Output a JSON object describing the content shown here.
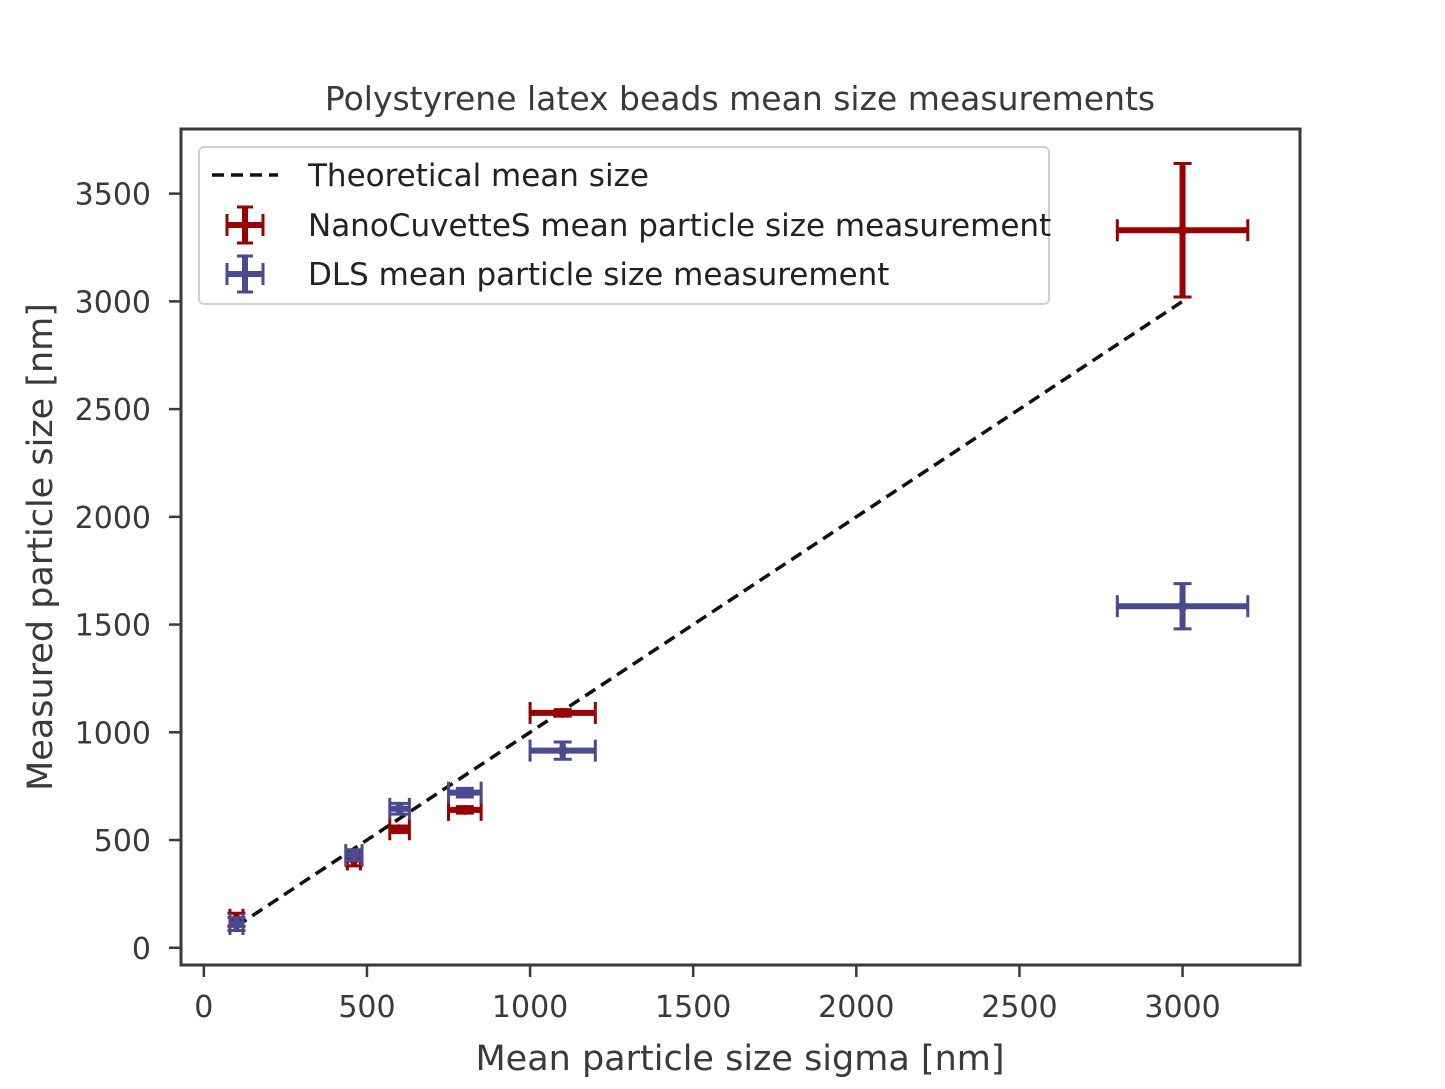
{
  "chart_data": {
    "type": "scatter",
    "title": "Polystyrene latex beads mean size measurements",
    "xlabel": "Mean particle size sigma [nm]",
    "ylabel": "Measured particle size [nm]",
    "xlim": [
      -70,
      3360
    ],
    "ylim": [
      -80,
      3800
    ],
    "xticks": [
      0,
      500,
      1000,
      1500,
      2000,
      2500,
      3000
    ],
    "yticks": [
      0,
      500,
      1000,
      1500,
      2000,
      2500,
      3000,
      3500
    ],
    "grid": false,
    "legend_position": "top-left",
    "series": [
      {
        "name": "Theoretical mean size",
        "kind": "line",
        "style": "dashed",
        "color": "#111111",
        "points": [
          {
            "x": 100,
            "y": 100
          },
          {
            "x": 3000,
            "y": 3000
          }
        ]
      },
      {
        "name": "NanoCuvetteS mean particle size measurement",
        "kind": "errorbar",
        "color": "#990000",
        "points": [
          {
            "x": 100,
            "y": 130,
            "xerr": 20,
            "yerr": 30
          },
          {
            "x": 460,
            "y": 410,
            "xerr": 20,
            "yerr": 30
          },
          {
            "x": 600,
            "y": 550,
            "xerr": 30,
            "yerr": 15
          },
          {
            "x": 800,
            "y": 640,
            "xerr": 50,
            "yerr": 15
          },
          {
            "x": 1100,
            "y": 1090,
            "xerr": 100,
            "yerr": 15
          },
          {
            "x": 3000,
            "y": 3330,
            "xerr": 200,
            "yerr": 310
          }
        ]
      },
      {
        "name": "DLS mean particle size measurement",
        "kind": "errorbar",
        "color": "#4a4a91",
        "points": [
          {
            "x": 100,
            "y": 110,
            "xerr": 20,
            "yerr": 30
          },
          {
            "x": 460,
            "y": 430,
            "xerr": 25,
            "yerr": 25
          },
          {
            "x": 600,
            "y": 645,
            "xerr": 30,
            "yerr": 25
          },
          {
            "x": 800,
            "y": 720,
            "xerr": 50,
            "yerr": 20
          },
          {
            "x": 1100,
            "y": 915,
            "xerr": 100,
            "yerr": 40
          },
          {
            "x": 3000,
            "y": 1585,
            "xerr": 200,
            "yerr": 105
          }
        ]
      }
    ]
  }
}
